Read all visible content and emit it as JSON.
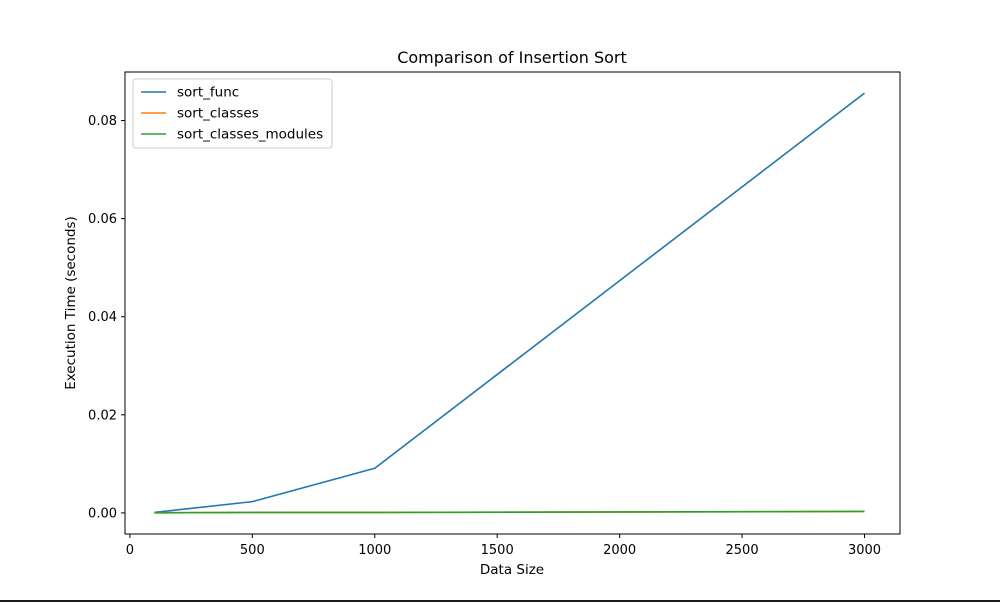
{
  "chart_data": {
    "type": "line",
    "title": "Comparison of Insertion Sort",
    "xlabel": "Data Size",
    "ylabel": "Execution Time (seconds)",
    "xlim": [
      -20,
      3145
    ],
    "ylim": [
      -0.0043,
      0.0899
    ],
    "x_ticks": [
      0,
      500,
      1000,
      1500,
      2000,
      2500,
      3000
    ],
    "x_tick_labels": [
      "0",
      "500",
      "1000",
      "1500",
      "2000",
      "2500",
      "3000"
    ],
    "y_ticks": [
      0.0,
      0.02,
      0.04,
      0.06,
      0.08
    ],
    "y_tick_labels": [
      "0.00",
      "0.02",
      "0.04",
      "0.06",
      "0.08"
    ],
    "grid": false,
    "legend_position": "top-left",
    "x": [
      100,
      500,
      1000,
      3000
    ],
    "series": [
      {
        "name": "sort_func",
        "color": "#1f77b4",
        "values": [
          0.0001,
          0.0023,
          0.0091,
          0.0856
        ]
      },
      {
        "name": "sort_classes",
        "color": "#ff7f0e",
        "values": [
          2e-05,
          0.0001,
          0.0001,
          0.0003
        ]
      },
      {
        "name": "sort_classes_modules",
        "color": "#2ca02c",
        "values": [
          2e-05,
          0.0001,
          0.0001,
          0.0003
        ]
      }
    ]
  }
}
